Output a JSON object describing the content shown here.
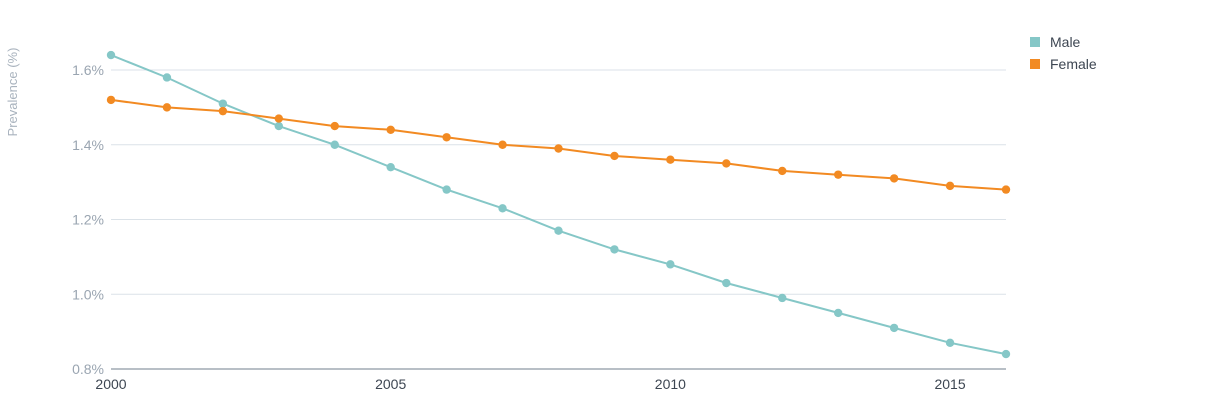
{
  "chart_data": {
    "type": "line",
    "title": "",
    "xlabel": "",
    "ylabel": "Prevalence (%)",
    "xlim": [
      2000,
      2016
    ],
    "ylim": [
      0.8,
      1.7
    ],
    "yticks": [
      0.8,
      1.0,
      1.2,
      1.4,
      1.6
    ],
    "ytick_labels": [
      "0.8%",
      "1.0%",
      "1.2%",
      "1.4%",
      "1.6%"
    ],
    "xticks": [
      2000,
      2005,
      2010,
      2015
    ],
    "xtick_labels": [
      "2000",
      "2005",
      "2010",
      "2015"
    ],
    "grid": true,
    "legend_position": "top-right",
    "x": [
      2000,
      2001,
      2002,
      2003,
      2004,
      2005,
      2006,
      2007,
      2008,
      2009,
      2010,
      2011,
      2012,
      2013,
      2014,
      2015,
      2016
    ],
    "series": [
      {
        "name": "Male",
        "color": "#85c7c7",
        "values": [
          1.64,
          1.58,
          1.51,
          1.45,
          1.4,
          1.34,
          1.28,
          1.23,
          1.17,
          1.12,
          1.08,
          1.03,
          0.99,
          0.95,
          0.91,
          0.87,
          0.84
        ]
      },
      {
        "name": "Female",
        "color": "#f28a22",
        "values": [
          1.52,
          1.5,
          1.49,
          1.47,
          1.45,
          1.44,
          1.42,
          1.4,
          1.39,
          1.37,
          1.36,
          1.35,
          1.33,
          1.32,
          1.31,
          1.29,
          1.28
        ]
      }
    ]
  }
}
